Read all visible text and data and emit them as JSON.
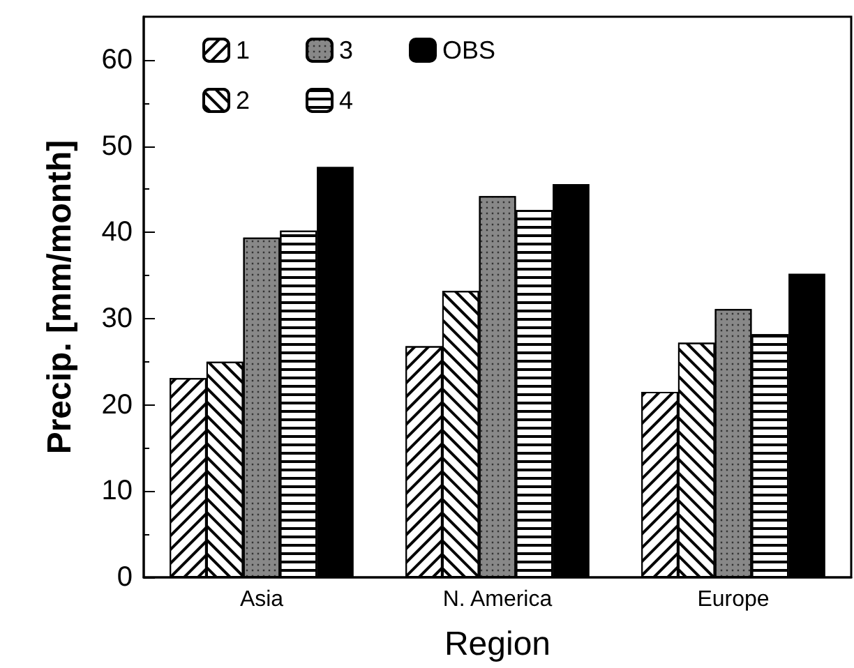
{
  "chart_data": {
    "type": "bar",
    "xlabel": "Region",
    "ylabel": "Precip. [mm/month]",
    "categories": [
      "Asia",
      "N. America",
      "Europe"
    ],
    "series": [
      {
        "name": "1",
        "color": "#ffffff",
        "values": [
          23.1,
          26.8,
          21.5
        ]
      },
      {
        "name": "2",
        "color": "#ffffff",
        "values": [
          25.0,
          33.2,
          27.2
        ]
      },
      {
        "name": "3",
        "color": "#888888",
        "values": [
          39.4,
          44.2,
          31.1
        ]
      },
      {
        "name": "4",
        "color": "#ffffff",
        "values": [
          40.2,
          42.6,
          28.2
        ]
      },
      {
        "name": "OBS",
        "color": "#000000",
        "values": [
          47.6,
          45.6,
          35.2
        ]
      }
    ],
    "ylim": [
      0,
      65
    ],
    "yticks": [
      0,
      10,
      20,
      30,
      40,
      50,
      60
    ],
    "grid": false,
    "legend": "top left"
  }
}
